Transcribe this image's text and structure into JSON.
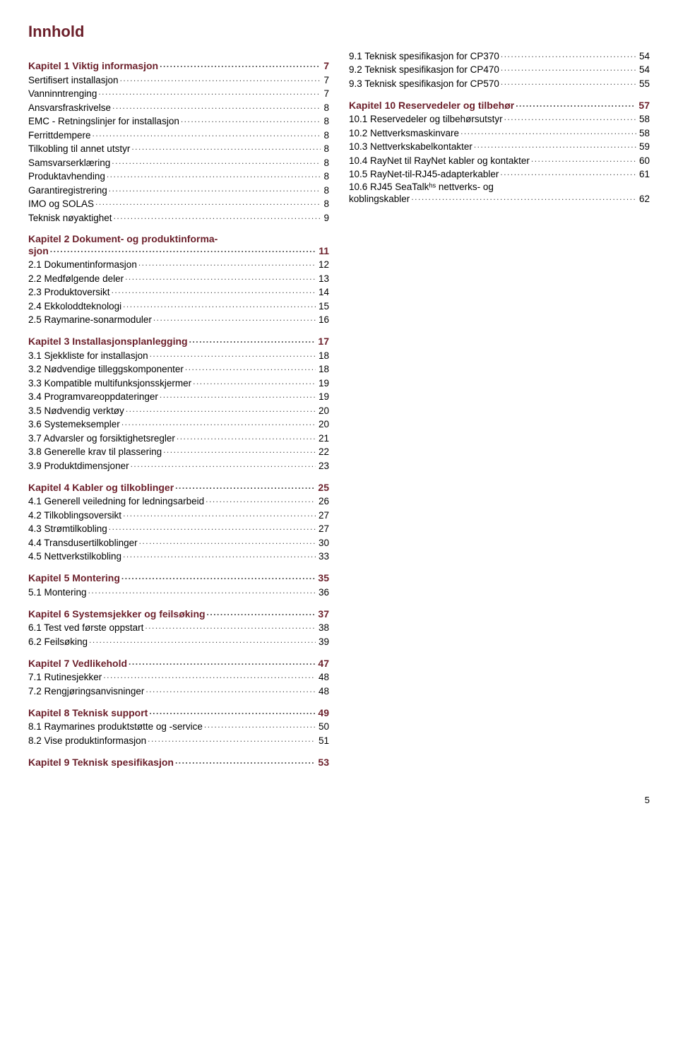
{
  "colors": {
    "heading": "#6b1f2a",
    "section": "#000000",
    "dots": "#444444"
  },
  "title": "Innhold",
  "footer_page": "5",
  "left": [
    {
      "type": "chapter",
      "label": "Kapitel 1 Viktig informasjon",
      "page": "7"
    },
    {
      "type": "section",
      "label": "Sertifisert installasjon",
      "page": "7"
    },
    {
      "type": "section",
      "label": "Vanninntrenging",
      "page": "7"
    },
    {
      "type": "section",
      "label": "Ansvarsfraskrivelse",
      "page": "8"
    },
    {
      "type": "section",
      "label": "EMC - Retningslinjer for installasjon",
      "page": "8"
    },
    {
      "type": "section",
      "label": "Ferrittdempere",
      "page": "8"
    },
    {
      "type": "section",
      "label": "Tilkobling til annet utstyr",
      "page": "8"
    },
    {
      "type": "section",
      "label": "Samsvarserklæring",
      "page": "8"
    },
    {
      "type": "section",
      "label": "Produktavhending",
      "page": "8"
    },
    {
      "type": "section",
      "label": "Garantiregistrering",
      "page": "8"
    },
    {
      "type": "section",
      "label": "IMO og SOLAS",
      "page": "8"
    },
    {
      "type": "section",
      "label": "Teknisk nøyaktighet",
      "page": "9"
    },
    {
      "type": "chapter",
      "label": "Kapitel 2 Dokument- og produktinformasjon",
      "page": "11",
      "prewrap": "Kapitel 2 Dokument- og produktinforma-",
      "wrap": "sjon"
    },
    {
      "type": "section",
      "label": "2.1 Dokumentinformasjon",
      "page": "12"
    },
    {
      "type": "section",
      "label": "2.2 Medfølgende deler",
      "page": "13"
    },
    {
      "type": "section",
      "label": "2.3 Produktoversikt",
      "page": "14"
    },
    {
      "type": "section",
      "label": "2.4 Ekkoloddteknologi",
      "page": "15"
    },
    {
      "type": "section",
      "label": "2.5 Raymarine-sonarmoduler",
      "page": "16"
    },
    {
      "type": "chapter",
      "label": "Kapitel 3 Installasjonsplanlegging",
      "page": "17"
    },
    {
      "type": "section",
      "label": "3.1 Sjekkliste for installasjon",
      "page": "18"
    },
    {
      "type": "section",
      "label": "3.2 Nødvendige tilleggskomponenter",
      "page": "18"
    },
    {
      "type": "section",
      "label": "3.3 Kompatible multifunksjonsskjermer",
      "page": "19"
    },
    {
      "type": "section",
      "label": "3.4 Programvareoppdateringer",
      "page": "19"
    },
    {
      "type": "section",
      "label": "3.5 Nødvendig verktøy",
      "page": "20"
    },
    {
      "type": "section",
      "label": "3.6 Systemeksempler",
      "page": "20"
    },
    {
      "type": "section",
      "label": "3.7 Advarsler og forsiktighetsregler",
      "page": "21"
    },
    {
      "type": "section",
      "label": "3.8 Generelle krav til plassering",
      "page": "22"
    },
    {
      "type": "section",
      "label": "3.9 Produktdimensjoner",
      "page": "23"
    },
    {
      "type": "chapter",
      "label": "Kapitel 4 Kabler og tilkoblinger",
      "page": "25"
    },
    {
      "type": "section",
      "label": "4.1 Generell veiledning for ledningsarbeid",
      "page": "26"
    },
    {
      "type": "section",
      "label": "4.2 Tilkoblingsoversikt",
      "page": "27"
    },
    {
      "type": "section",
      "label": "4.3 Strømtilkobling",
      "page": "27"
    },
    {
      "type": "section",
      "label": "4.4 Transdusertilkoblinger",
      "page": "30"
    },
    {
      "type": "section",
      "label": "4.5 Nettverkstilkobling",
      "page": "33"
    },
    {
      "type": "chapter",
      "label": "Kapitel 5 Montering",
      "page": "35"
    },
    {
      "type": "section",
      "label": "5.1 Montering",
      "page": "36"
    },
    {
      "type": "chapter",
      "label": "Kapitel 6 Systemsjekker og feilsøking",
      "page": "37"
    },
    {
      "type": "section",
      "label": "6.1 Test ved første oppstart",
      "page": "38"
    },
    {
      "type": "section",
      "label": "6.2 Feilsøking",
      "page": "39"
    },
    {
      "type": "chapter",
      "label": "Kapitel 7 Vedlikehold",
      "page": "47"
    },
    {
      "type": "section",
      "label": "7.1 Rutinesjekker",
      "page": "48"
    },
    {
      "type": "section",
      "label": "7.2 Rengjøringsanvisninger",
      "page": "48"
    },
    {
      "type": "chapter",
      "label": "Kapitel 8 Teknisk support",
      "page": "49"
    },
    {
      "type": "section",
      "label": "8.1 Raymarines produktstøtte og -service",
      "page": "50"
    },
    {
      "type": "section",
      "label": "8.2 Vise produktinformasjon",
      "page": "51"
    },
    {
      "type": "chapter",
      "label": "Kapitel 9 Teknisk spesifikasjon",
      "page": "53"
    }
  ],
  "right": [
    {
      "type": "section",
      "label": "9.1 Teknisk spesifikasjon for CP370",
      "page": "54"
    },
    {
      "type": "section",
      "label": "9.2 Teknisk spesifikasjon for CP470",
      "page": "54"
    },
    {
      "type": "section",
      "label": "9.3 Teknisk spesifikasjon for CP570",
      "page": "55"
    },
    {
      "type": "chapter",
      "label": "Kapitel 10 Reservedeler og tilbehør",
      "page": "57"
    },
    {
      "type": "section",
      "label": "10.1 Reservedeler og tilbehørsutstyr",
      "page": "58"
    },
    {
      "type": "section",
      "label": "10.2 Nettverksmaskinvare",
      "page": "58"
    },
    {
      "type": "section",
      "label": "10.3 Nettverkskabelkontakter",
      "page": "59"
    },
    {
      "type": "section",
      "label": "10.4 RayNet til RayNet kabler og kontakter",
      "page": "60"
    },
    {
      "type": "section",
      "label": "10.5 RayNet-til-RJ45-adapterkabler",
      "page": "61"
    },
    {
      "type": "section",
      "label": "10.6 RJ45 SeaTalkhs nettverks- og koblingskabler",
      "page": "62",
      "prewrap": "10.6 RJ45 SeaTalkʰˢ nettverks- og",
      "wrap": "koblingskabler"
    }
  ]
}
